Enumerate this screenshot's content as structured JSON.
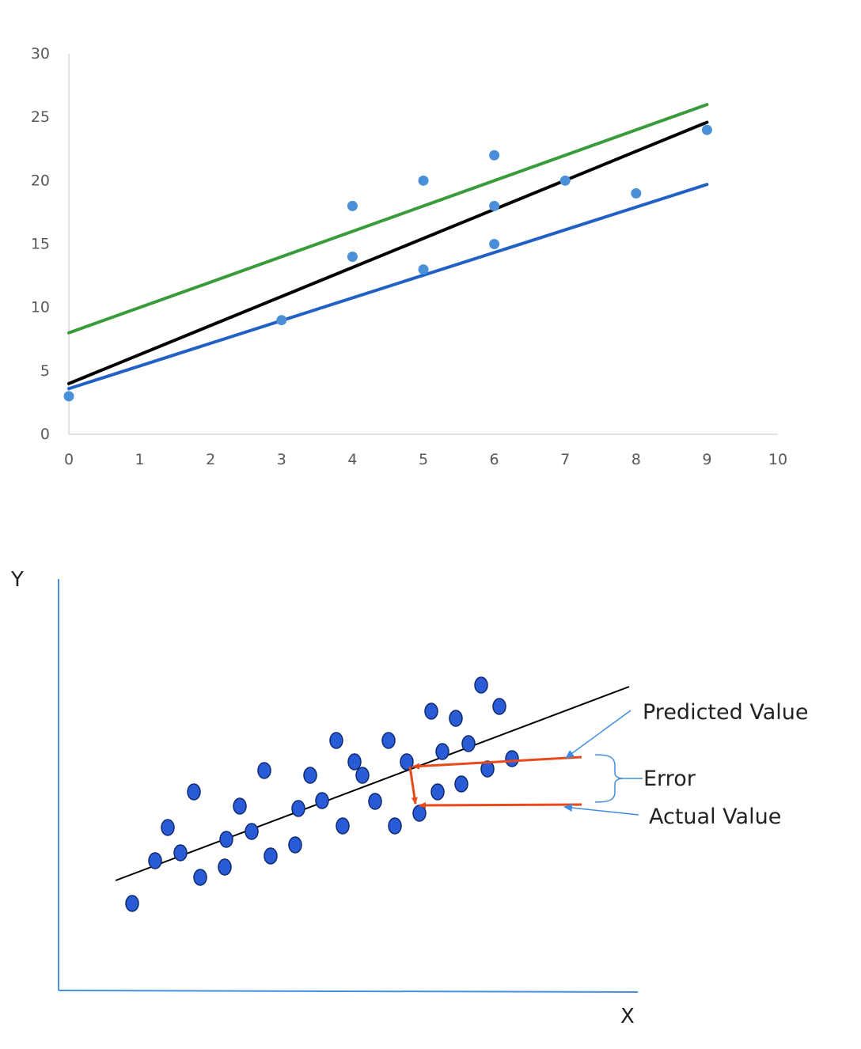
{
  "chart_data": [
    {
      "type": "scatter",
      "title": "",
      "xlabel": "",
      "ylabel": "",
      "xlim": [
        0,
        10
      ],
      "ylim": [
        0,
        30
      ],
      "x_ticks": [
        0,
        1,
        2,
        3,
        4,
        5,
        6,
        7,
        8,
        9,
        10
      ],
      "y_ticks": [
        0,
        5,
        10,
        15,
        20,
        25,
        30
      ],
      "grid": false,
      "points": {
        "color": "#4a90d9",
        "x": [
          0,
          3,
          4,
          4,
          5,
          5,
          6,
          6,
          6,
          7,
          8,
          9
        ],
        "y": [
          3,
          9,
          18,
          14,
          20,
          13,
          22,
          18,
          15,
          20,
          19,
          24
        ]
      },
      "lines": [
        {
          "color": "#3a9b3a",
          "x": [
            0,
            9
          ],
          "y": [
            8,
            26
          ]
        },
        {
          "color": "#000000",
          "x": [
            0,
            9
          ],
          "y": [
            4,
            24.6
          ]
        },
        {
          "color": "#2160c4",
          "x": [
            0,
            9
          ],
          "y": [
            3.6,
            19.7
          ]
        }
      ]
    },
    {
      "type": "scatter",
      "title": "",
      "xlabel": "X",
      "ylabel": "Y",
      "grid": false,
      "axis_color": "#4a90e2",
      "point_color": "#2a5bd7",
      "annotations": {
        "predicted": "Predicted Value",
        "error": "Error",
        "actual": "Actual Value"
      }
    }
  ]
}
